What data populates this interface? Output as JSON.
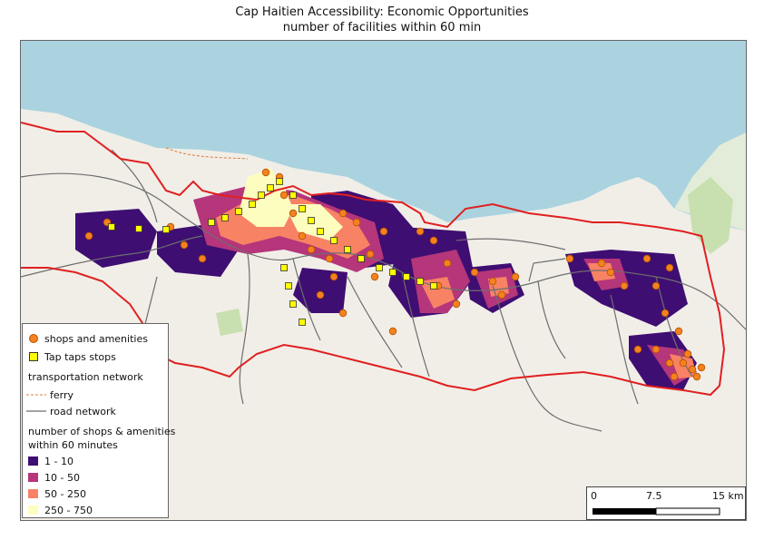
{
  "map": {
    "title_line1": "Cap Haitien Accessibility: Economic Opportunities",
    "title_line2": "number of facilities within 60 min",
    "colors": {
      "sea": "#aad3df",
      "land": "#f1eee8",
      "boundary": "#e02020",
      "road": "#6e6e6e",
      "ferry": "#e07b39",
      "shop_fill": "#f5821f",
      "shop_stroke": "#b35400",
      "taptap_fill": "#ffff00",
      "taptap_stroke": "#333333",
      "class_1_10": "#3f0e72",
      "class_10_50": "#b5367a",
      "class_50_250": "#f88264",
      "class_250_750": "#fcfdbf",
      "park": "#c8dfb0"
    }
  },
  "legend": {
    "shops_label": "shops and amenities",
    "taptap_label": "Tap taps stops",
    "network_heading": "transportation network",
    "ferry_label": "ferry",
    "road_label": "road network",
    "classes_heading_1": "number of shops & amenities",
    "classes_heading_2": "within 60 minutes",
    "classes": [
      "1 - 10",
      "10 - 50",
      "50 - 250",
      "250 - 750"
    ]
  },
  "scalebar": {
    "label_0": "0",
    "label_mid": "7.5",
    "label_end": "15 km"
  }
}
